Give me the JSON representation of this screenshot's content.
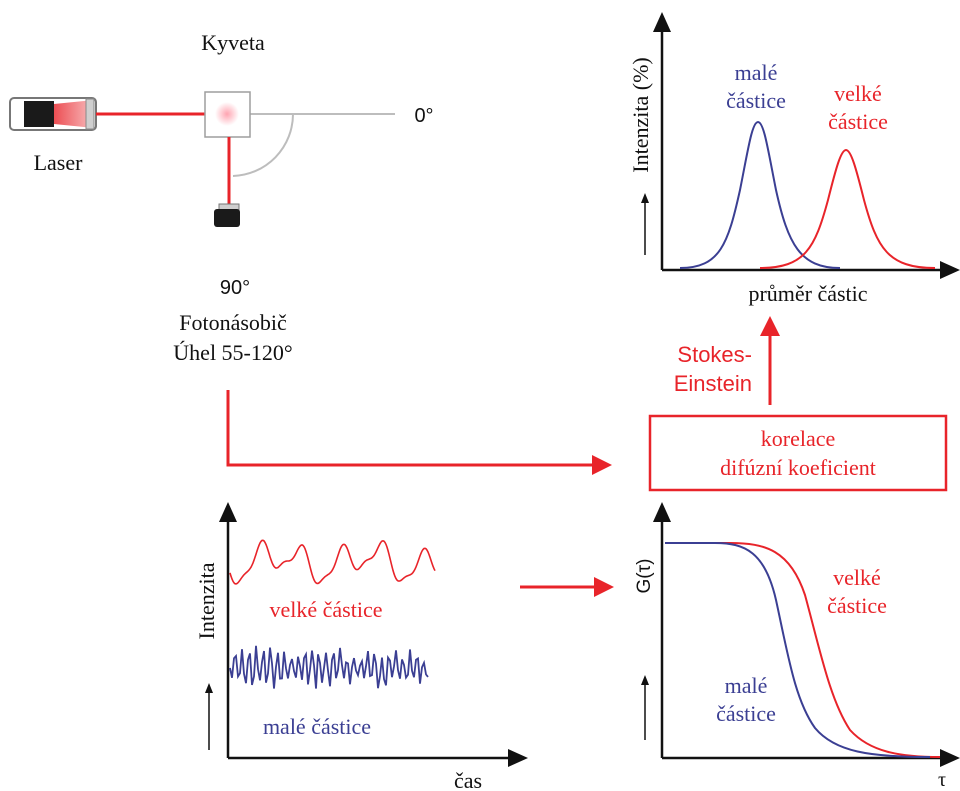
{
  "setup": {
    "cuvette_label": "Kyveta",
    "laser_label": "Laser",
    "angle_0": "0°",
    "angle_90": "90°",
    "detector_label": "Fotonásobič",
    "angle_range": "Úhel 55-120°"
  },
  "size_distribution": {
    "ylabel": "Intenzita (%)",
    "xlabel": "průměr částic",
    "small_label_line1": "malé",
    "small_label_line2": "částice",
    "large_label_line1": "velké",
    "large_label_line2": "částice"
  },
  "stokes": {
    "line1": "Stokes-",
    "line2": "Einstein"
  },
  "correlation_box": {
    "line1": "korelace",
    "line2": "difúzní koeficient"
  },
  "intensity_signal": {
    "ylabel": "Intenzita",
    "xlabel": "čas",
    "large_label": "velké částice",
    "small_label": "malé částice"
  },
  "correlation_plot": {
    "ylabel": "G(τ)",
    "xlabel": "τ",
    "large_label_line1": "velké",
    "large_label_line2": "částice",
    "small_label_line1": "malé",
    "small_label_line2": "částice"
  },
  "colors": {
    "red": "#e8242a",
    "blue": "#3b3f93",
    "gray": "#bdbdbd",
    "black": "#111111"
  }
}
